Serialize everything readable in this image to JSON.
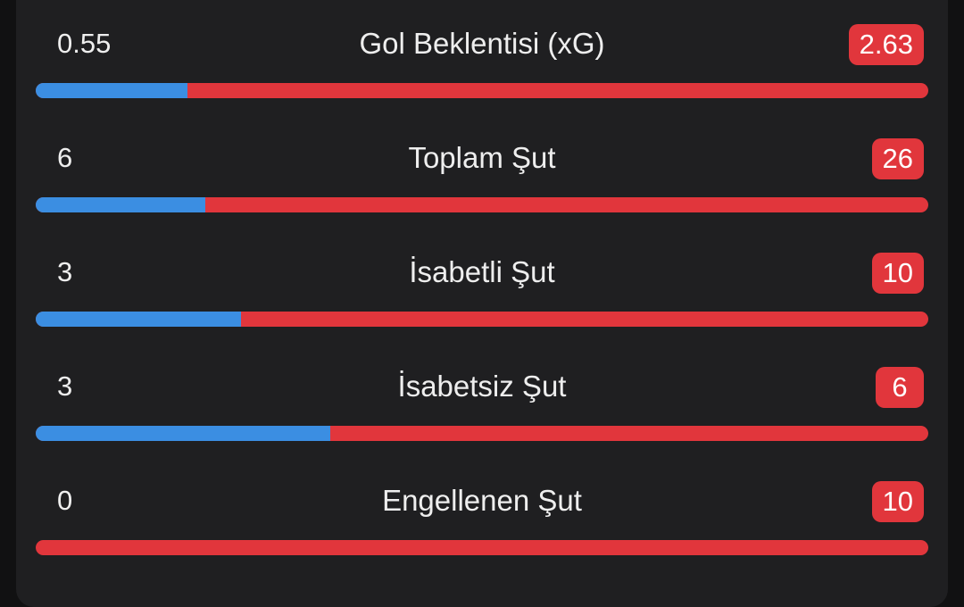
{
  "colors": {
    "background": "#1f1f21",
    "home_bar": "#3b8ee2",
    "away_bar": "#e1363c",
    "text": "#eeeeee"
  },
  "stats": [
    {
      "label": "Gol Beklentisi (xG)",
      "home": "0.55",
      "away": "2.63",
      "home_share": 0.17
    },
    {
      "label": "Toplam Şut",
      "home": "6",
      "away": "26",
      "home_share": 0.19
    },
    {
      "label": "İsabetli Şut",
      "home": "3",
      "away": "10",
      "home_share": 0.23
    },
    {
      "label": "İsabetsiz Şut",
      "home": "3",
      "away": "6",
      "home_share": 0.33
    },
    {
      "label": "Engellenen Şut",
      "home": "0",
      "away": "10",
      "home_share": 0.0
    }
  ]
}
